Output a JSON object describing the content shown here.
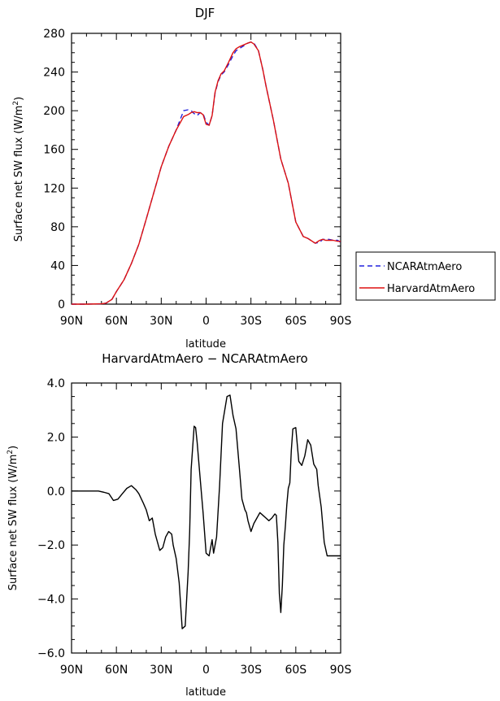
{
  "chart_data": [
    {
      "type": "line",
      "title": "DJF",
      "xlabel": "latitude",
      "ylabel": "Surface net SW flux (W/m²)",
      "ylabel_main": "Surface net SW flux (W/m",
      "ylabel_sup": "2",
      "ylabel_tail": ")",
      "xlim": [
        -90,
        90
      ],
      "ylim": [
        0,
        280
      ],
      "x_ticks": [
        {
          "value": -90,
          "label": "90N"
        },
        {
          "value": -60,
          "label": "60N"
        },
        {
          "value": -30,
          "label": "30N"
        },
        {
          "value": 0,
          "label": "0"
        },
        {
          "value": 30,
          "label": "30S"
        },
        {
          "value": 60,
          "label": "60S"
        },
        {
          "value": 90,
          "label": "90S"
        }
      ],
      "y_ticks": [
        {
          "value": 0,
          "label": "0"
        },
        {
          "value": 40,
          "label": "40"
        },
        {
          "value": 80,
          "label": "80"
        },
        {
          "value": 120,
          "label": "120"
        },
        {
          "value": 160,
          "label": "160"
        },
        {
          "value": 200,
          "label": "200"
        },
        {
          "value": 240,
          "label": "240"
        },
        {
          "value": 280,
          "label": "280"
        }
      ],
      "grid": false,
      "legend_position": "right",
      "series": [
        {
          "name": "NCARAtmAero",
          "color": "#2222dd",
          "dash": "dashed",
          "x": [
            -90,
            -80,
            -70,
            -67,
            -63,
            -60,
            -55,
            -50,
            -45,
            -40,
            -35,
            -30,
            -25,
            -20,
            -15,
            -12,
            -10,
            -8,
            -6,
            -4,
            -2,
            0,
            2,
            4,
            6,
            8,
            10,
            12,
            15,
            18,
            20,
            22,
            25,
            28,
            30,
            32,
            35,
            38,
            40,
            45,
            50,
            55,
            60,
            65,
            68,
            70,
            73,
            76,
            78,
            80,
            82,
            85,
            88,
            90
          ],
          "y": [
            0,
            0,
            0.3,
            1,
            5,
            13,
            25,
            42,
            62,
            88,
            115,
            142,
            163,
            180,
            200,
            201,
            200,
            197,
            195,
            198,
            197,
            188,
            185,
            195,
            218,
            230,
            237,
            240,
            248,
            257,
            262,
            264,
            267,
            270,
            271,
            270,
            262,
            242,
            226,
            190,
            150,
            125,
            85,
            70,
            68,
            66,
            63,
            64,
            67,
            67,
            67,
            66,
            66,
            64
          ]
        },
        {
          "name": "HarvardAtmAero",
          "color": "#dd1111",
          "dash": "solid",
          "x": [
            -90,
            -80,
            -70,
            -67,
            -63,
            -60,
            -55,
            -50,
            -45,
            -40,
            -35,
            -30,
            -25,
            -20,
            -15,
            -12,
            -10,
            -8,
            -6,
            -4,
            -2,
            0,
            2,
            4,
            6,
            8,
            10,
            12,
            15,
            18,
            20,
            22,
            25,
            28,
            30,
            32,
            35,
            38,
            40,
            45,
            50,
            55,
            60,
            65,
            68,
            70,
            73,
            76,
            78,
            80,
            82,
            85,
            88,
            90
          ],
          "y": [
            0,
            0,
            0.3,
            1,
            5,
            13,
            25,
            42,
            62,
            88,
            115,
            142,
            163,
            180,
            194,
            196,
            198,
            199,
            198,
            198,
            196,
            186,
            185,
            195,
            219,
            231,
            238,
            241,
            250,
            260,
            264,
            266,
            268,
            270,
            271,
            269,
            262,
            242,
            226,
            190,
            150,
            125,
            85,
            70,
            68,
            66,
            63,
            66,
            67,
            66,
            66,
            66,
            65,
            65
          ]
        }
      ]
    },
    {
      "type": "line",
      "title": "HarvardAtmAero − NCARAtmAero",
      "xlabel": "latitude",
      "ylabel": "Surface net SW flux (W/m²)",
      "ylabel_main": "Surface net SW flux (W/m",
      "ylabel_sup": "2",
      "ylabel_tail": ")",
      "xlim": [
        -90,
        90
      ],
      "ylim": [
        -6,
        4
      ],
      "x_ticks": [
        {
          "value": -90,
          "label": "90N"
        },
        {
          "value": -60,
          "label": "60N"
        },
        {
          "value": -30,
          "label": "30N"
        },
        {
          "value": 0,
          "label": "0"
        },
        {
          "value": 30,
          "label": "30S"
        },
        {
          "value": 60,
          "label": "60S"
        },
        {
          "value": 90,
          "label": "90S"
        }
      ],
      "y_ticks": [
        {
          "value": -6,
          "label": "−6.0"
        },
        {
          "value": -4,
          "label": "−4.0"
        },
        {
          "value": -2,
          "label": "−2.0"
        },
        {
          "value": 0,
          "label": "0.0"
        },
        {
          "value": 2,
          "label": "2.0"
        },
        {
          "value": 4,
          "label": "4.0"
        }
      ],
      "grid": false,
      "series": [
        {
          "color": "#000000",
          "dash": "solid",
          "x": [
            -90,
            -80,
            -72,
            -68,
            -65,
            -62,
            -59,
            -56,
            -53,
            -50,
            -47,
            -45,
            -42,
            -40,
            -38,
            -36,
            -34,
            -31,
            -29,
            -27,
            -25,
            -23,
            -22,
            -20,
            -18,
            -16,
            -14,
            -12,
            -11,
            -10,
            -8,
            -7,
            -6,
            -4,
            -2,
            0,
            2,
            4,
            5,
            7,
            9,
            11,
            14,
            16,
            18,
            20,
            22,
            24,
            26,
            27,
            28,
            30,
            32,
            34,
            36,
            38,
            40,
            42,
            44,
            46,
            47,
            48,
            49,
            50,
            51,
            52,
            53,
            54,
            55,
            56,
            57,
            58,
            60,
            62,
            64,
            66,
            68,
            70,
            72,
            74,
            75,
            77,
            79,
            81,
            83,
            85,
            87,
            88,
            90
          ],
          "y": [
            0,
            0,
            0,
            -0.05,
            -0.1,
            -0.35,
            -0.3,
            -0.1,
            0.1,
            0.2,
            0.05,
            -0.1,
            -0.45,
            -0.7,
            -1.1,
            -1.0,
            -1.6,
            -2.2,
            -2.1,
            -1.7,
            -1.5,
            -1.6,
            -2.0,
            -2.5,
            -3.4,
            -5.1,
            -5.0,
            -3.0,
            -1.5,
            0.8,
            2.4,
            2.35,
            1.8,
            0.5,
            -0.8,
            -2.3,
            -2.4,
            -1.8,
            -2.3,
            -1.7,
            0.2,
            2.5,
            3.5,
            3.55,
            2.8,
            2.3,
            1.0,
            -0.3,
            -0.7,
            -0.8,
            -1.1,
            -1.5,
            -1.2,
            -1.0,
            -0.8,
            -0.9,
            -1.0,
            -1.1,
            -1.0,
            -0.85,
            -0.9,
            -1.9,
            -3.8,
            -4.5,
            -3.5,
            -2.0,
            -1.3,
            -0.5,
            0.1,
            0.3,
            1.5,
            2.3,
            2.35,
            1.1,
            0.95,
            1.3,
            1.9,
            1.7,
            1.0,
            0.8,
            0.2,
            -0.6,
            -1.9,
            -2.4,
            -2.4,
            -2.4,
            -2.4,
            -2.4,
            -2.4
          ]
        }
      ]
    }
  ]
}
